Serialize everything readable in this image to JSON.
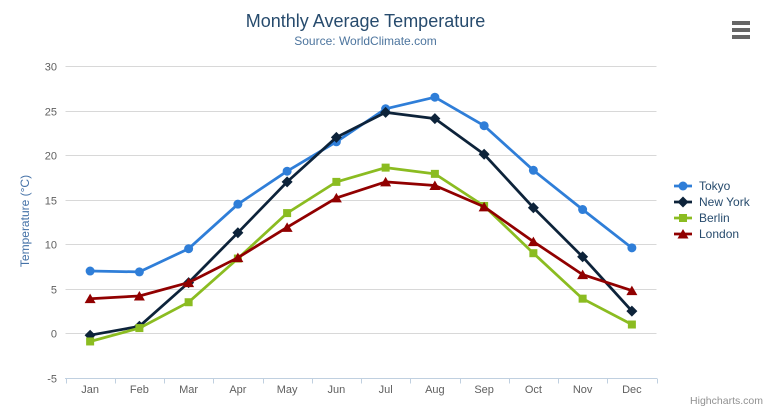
{
  "chart_data": {
    "type": "line",
    "title": "Monthly Average Temperature",
    "subtitle": "Source: WorldClimate.com",
    "xlabel": "",
    "ylabel": "Temperature (°C)",
    "categories": [
      "Jan",
      "Feb",
      "Mar",
      "Apr",
      "May",
      "Jun",
      "Jul",
      "Aug",
      "Sep",
      "Oct",
      "Nov",
      "Dec"
    ],
    "ylim": [
      -5,
      30
    ],
    "yticks": [
      -5,
      0,
      5,
      10,
      15,
      20,
      25,
      30
    ],
    "grid": "horizontal-only",
    "legend_position": "right",
    "series": [
      {
        "name": "Tokyo",
        "color": "#2f7ed8",
        "marker": "circle",
        "values": [
          7.0,
          6.9,
          9.5,
          14.5,
          18.2,
          21.5,
          25.2,
          26.5,
          23.3,
          18.3,
          13.9,
          9.6
        ]
      },
      {
        "name": "New York",
        "color": "#0d233a",
        "marker": "diamond",
        "values": [
          -0.2,
          0.8,
          5.7,
          11.3,
          17.0,
          22.0,
          24.8,
          24.1,
          20.1,
          14.1,
          8.6,
          2.5
        ]
      },
      {
        "name": "Berlin",
        "color": "#8bbc21",
        "marker": "square",
        "values": [
          -0.9,
          0.6,
          3.5,
          8.4,
          13.5,
          17.0,
          18.6,
          17.9,
          14.3,
          9.0,
          3.9,
          1.0
        ]
      },
      {
        "name": "London",
        "color": "#910000",
        "marker": "triangle",
        "values": [
          3.9,
          4.2,
          5.7,
          8.5,
          11.9,
          15.2,
          17.0,
          16.6,
          14.2,
          10.3,
          6.6,
          4.8
        ]
      }
    ],
    "credits": "Highcharts.com"
  },
  "icons": {
    "context_menu": "hamburger-menu-icon"
  },
  "style": {
    "grid_color": "#d8d8d8",
    "axis_color": "#c0d0e0",
    "tick_label_color": "#606060",
    "title_color": "#274b6d",
    "subtitle_color": "#4d759e",
    "yaxis_title_color": "#4572a7",
    "legend_text_color": "#274b6d",
    "credits_color": "#909090",
    "menu_icon_color": "#666666"
  }
}
